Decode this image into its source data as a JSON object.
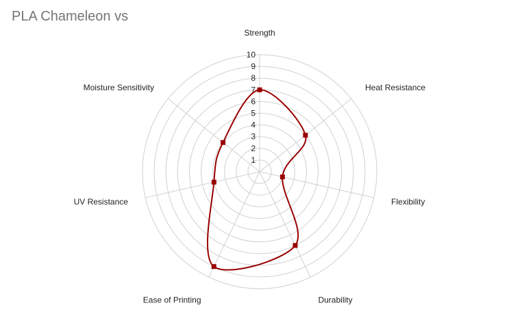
{
  "chart_data": {
    "type": "radar",
    "title": "PLA Chameleon vs",
    "axes": [
      "Strength",
      "Heat Resistance",
      "Flexibility",
      "Durability",
      "Ease of Printing",
      "UV Resistance",
      "Moisture Sensitivity"
    ],
    "series": [
      {
        "values": [
          7,
          5,
          2,
          7,
          9,
          4,
          4
        ],
        "color": "#990000"
      }
    ],
    "rlim": [
      0,
      10
    ],
    "ticks": [
      "1",
      "2",
      "3",
      "4",
      "5",
      "6",
      "7",
      "8",
      "9",
      "10"
    ],
    "grid": true,
    "legend": "none"
  }
}
